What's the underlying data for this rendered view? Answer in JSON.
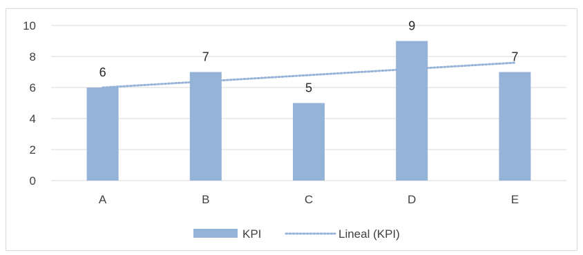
{
  "chart_data": {
    "type": "bar",
    "categories": [
      "A",
      "B",
      "C",
      "D",
      "E"
    ],
    "series": [
      {
        "name": "KPI",
        "values": [
          6,
          7,
          5,
          9,
          7
        ]
      }
    ],
    "trendline": {
      "name": "Lineal (KPI)",
      "type": "linear",
      "series": "KPI"
    },
    "ylim": [
      0,
      10
    ],
    "yticks": [
      0,
      2,
      4,
      6,
      8,
      10
    ],
    "grid": true,
    "data_labels": true,
    "legend_position": "bottom",
    "colors": {
      "bar": "#95b3d7",
      "trendline": "#95b3d7",
      "grid": "#d9d9d9"
    }
  }
}
